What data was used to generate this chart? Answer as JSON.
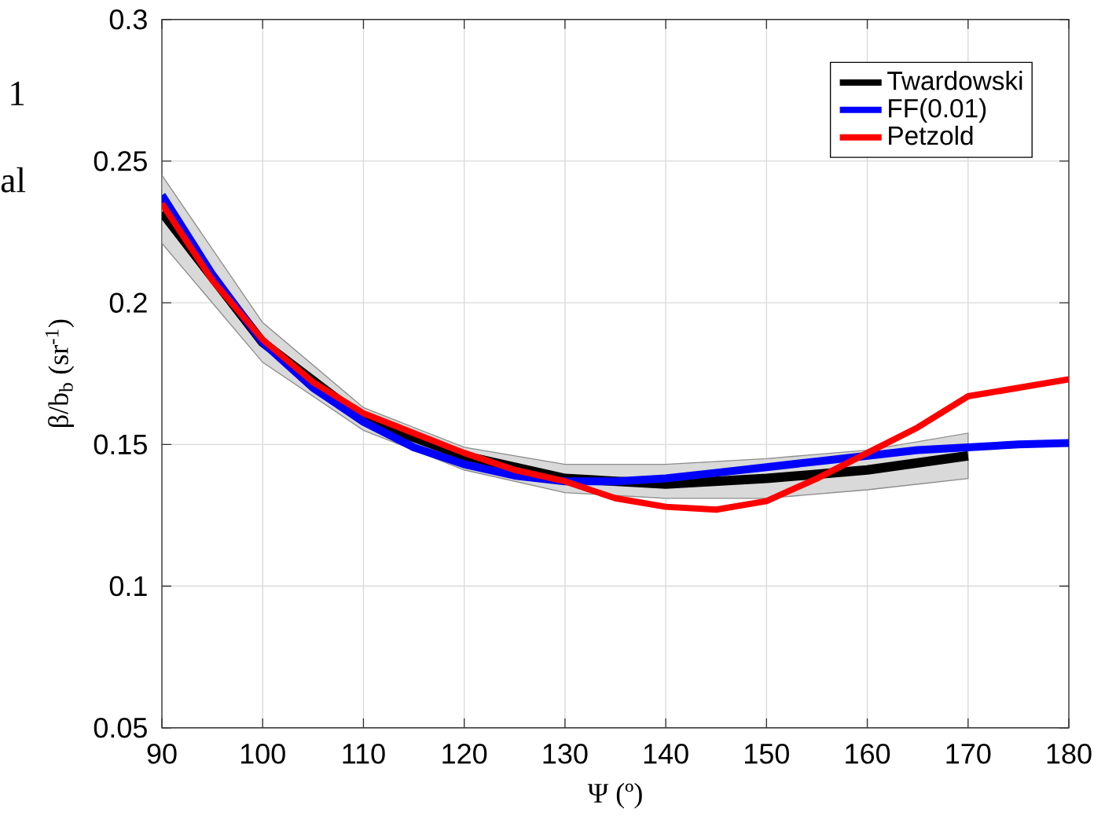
{
  "chart_data": {
    "type": "line",
    "xlabel": "Ψ (º)",
    "ylabel": "β/b$_{b}$ (sr$^{-1}$)",
    "xlim": [
      90,
      180
    ],
    "xticks": [
      90,
      100,
      110,
      120,
      130,
      140,
      150,
      160,
      170,
      180
    ],
    "ylim": [
      0.05,
      0.3
    ],
    "yticks": [
      0.05,
      0.1,
      0.15,
      0.2,
      0.25,
      0.3
    ],
    "grid": true,
    "legend": "top right",
    "line_style": "solid",
    "marker": "none",
    "annotations": [
      "1",
      "al"
    ],
    "series": [
      {
        "name": "Twardowski",
        "color": "#000000",
        "x": [
          90,
          100,
          110,
          120,
          130,
          140,
          150,
          160,
          170
        ],
        "values": [
          0.232,
          0.186,
          0.159,
          0.146,
          0.138,
          0.136,
          0.138,
          0.141,
          0.146
        ],
        "lower": [
          0.221,
          0.179,
          0.155,
          0.141,
          0.133,
          0.131,
          0.131,
          0.134,
          0.138
        ],
        "upper": [
          0.245,
          0.193,
          0.163,
          0.149,
          0.143,
          0.143,
          0.145,
          0.148,
          0.154
        ]
      },
      {
        "name": "FF(0.01)",
        "color": "#0000ff",
        "x": [
          90,
          95,
          100,
          105,
          110,
          115,
          120,
          125,
          130,
          135,
          140,
          145,
          150,
          155,
          160,
          165,
          170,
          175,
          180
        ],
        "values": [
          0.238,
          0.21,
          0.186,
          0.17,
          0.158,
          0.149,
          0.143,
          0.139,
          0.137,
          0.137,
          0.138,
          0.14,
          0.142,
          0.144,
          0.146,
          0.148,
          0.149,
          0.15,
          0.1505
        ]
      },
      {
        "name": "Petzold",
        "color": "#ff0000",
        "x": [
          90,
          95,
          100,
          105,
          110,
          115,
          120,
          125,
          130,
          135,
          140,
          145,
          150,
          155,
          160,
          165,
          170,
          180
        ],
        "values": [
          0.235,
          0.208,
          0.187,
          0.172,
          0.161,
          0.154,
          0.147,
          0.141,
          0.137,
          0.131,
          0.128,
          0.127,
          0.13,
          0.138,
          0.147,
          0.156,
          0.167,
          0.173
        ]
      }
    ]
  }
}
